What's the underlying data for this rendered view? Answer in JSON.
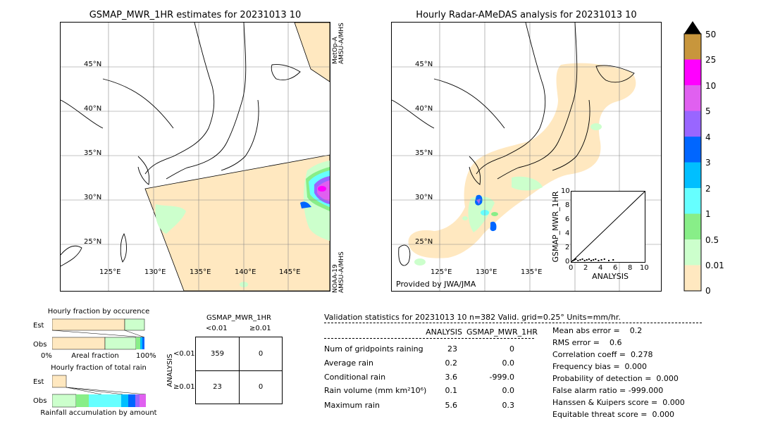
{
  "left_map": {
    "title": "GSMAP_MWR_1HR estimates for 20231013 10",
    "sat_top": "MetOp-A\nAMSU-A/MHS",
    "sat_top_lines": [
      "MetOp-A",
      "AMSU-A/MHS"
    ],
    "sat_bottom_lines": [
      "NOAA-19",
      "AMSU-A/MHS"
    ],
    "lat_labels": [
      "45°N",
      "40°N",
      "35°N",
      "30°N",
      "25°N"
    ],
    "lon_labels": [
      "125°E",
      "130°E",
      "135°E",
      "140°E",
      "145°E"
    ]
  },
  "right_map": {
    "title": "Hourly Radar-AMeDAS analysis for 20231013 10",
    "credit": "Provided by JWA/JMA",
    "lat_labels": [
      "45°N",
      "40°N",
      "35°N",
      "30°N",
      "25°N"
    ],
    "lon_labels": [
      "125°E",
      "130°E",
      "135°E"
    ]
  },
  "colorbar": {
    "labels": [
      "50",
      "25",
      "10",
      "5",
      "4",
      "3",
      "2",
      "1",
      "0.5",
      "0.01",
      "0"
    ],
    "colors": [
      "#c8963c",
      "#ff00ff",
      "#e060f0",
      "#9966ff",
      "#0066ff",
      "#00bfff",
      "#66ffff",
      "#88ee88",
      "#ccffcc",
      "#ffe8c0"
    ]
  },
  "scatter_inset": {
    "xlabel": "ANALYSIS",
    "ylabel": "GSMAP_MWR_1HR",
    "x_ticks": [
      "0",
      "2",
      "4",
      "6",
      "8",
      "10"
    ],
    "y_ticks": [
      "0",
      "2",
      "4",
      "6",
      "8",
      "10"
    ]
  },
  "occurrence": {
    "title": "Hourly fraction by occurence",
    "row_labels": [
      "Est",
      "Obs"
    ],
    "axis_left": "0%",
    "axis_mid": "Areal fraction",
    "axis_right": "100%"
  },
  "total_rain": {
    "title": "Hourly fraction of total rain",
    "row_labels": [
      "Est",
      "Obs"
    ],
    "axis_label": "Rainfall accumulation by amount"
  },
  "contingency": {
    "title": "GSMAP_MWR_1HR",
    "col_labels": [
      "<0.01",
      "≥0.01"
    ],
    "row_axis": "ANALYSIS",
    "row_labels": [
      "<0.01",
      "≥0.01"
    ],
    "cells": [
      [
        "359",
        "0"
      ],
      [
        "23",
        "0"
      ]
    ]
  },
  "validation": {
    "header": "Validation statistics for 20231013 10  n=382 Valid. grid=0.25° Units=mm/hr.",
    "col_headers": [
      "ANALYSIS",
      "GSMAP_MWR_1HR"
    ],
    "rows": [
      {
        "label": "Num of gridpoints raining",
        "analysis": "23",
        "gsmap": "0"
      },
      {
        "label": "Average rain",
        "analysis": "0.2",
        "gsmap": "0.0"
      },
      {
        "label": "Conditional rain",
        "analysis": "3.6",
        "gsmap": "-999.0"
      },
      {
        "label": "Rain volume (mm km²10⁶)",
        "analysis": "0.1",
        "gsmap": "0.0"
      },
      {
        "label": "Maximum rain",
        "analysis": "5.6",
        "gsmap": "0.3"
      }
    ],
    "scores": [
      "Mean abs error =    0.2",
      "RMS error =    0.6",
      "Correlation coeff =  0.278",
      "Frequency bias =  0.000",
      "Probability of detection =  0.000",
      "False alarm ratio = -999.000",
      "Hanssen & Kuipers score =  0.000",
      "Equitable threat score =  0.000"
    ]
  }
}
